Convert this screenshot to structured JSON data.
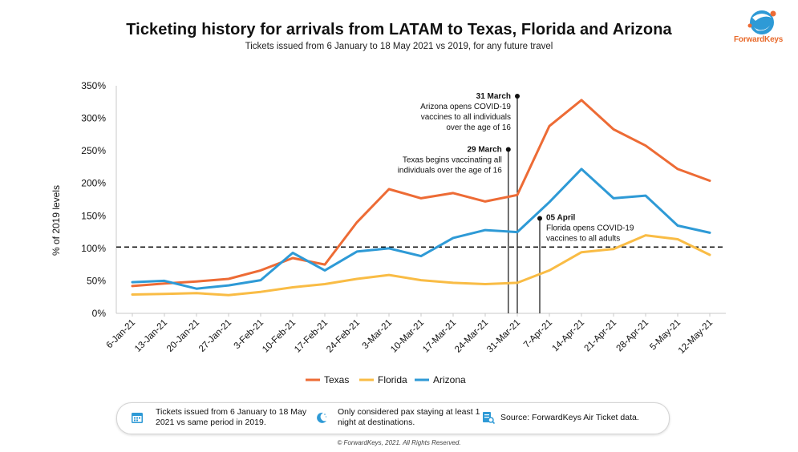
{
  "header": {
    "title": "Ticketing history for arrivals from LATAM to Texas, Florida and Arizona",
    "subtitle": "Tickets issued from 6 January to 18 May 2021 vs 2019, for any future travel",
    "logo_text": "ForwardKeys"
  },
  "chart_data": {
    "type": "line",
    "ylabel": "% of 2019 levels",
    "ylim": [
      0,
      350
    ],
    "y_ticks": [
      "0%",
      "50%",
      "100%",
      "150%",
      "200%",
      "250%",
      "300%",
      "350%"
    ],
    "categories": [
      "6-Jan-21",
      "13-Jan-21",
      "20-Jan-21",
      "27-Jan-21",
      "3-Feb-21",
      "10-Feb-21",
      "17-Feb-21",
      "24-Feb-21",
      "3-Mar-21",
      "10-Mar-21",
      "17-Mar-21",
      "24-Mar-21",
      "31-Mar-21",
      "7-Apr-21",
      "14-Apr-21",
      "21-Apr-21",
      "28-Apr-21",
      "5-May-21",
      "12-May-21"
    ],
    "series": [
      {
        "name": "Texas",
        "color": "#ED6B35",
        "values": [
          42,
          46,
          49,
          53,
          66,
          85,
          75,
          140,
          191,
          177,
          185,
          172,
          182,
          288,
          328,
          283,
          258,
          222,
          204
        ]
      },
      {
        "name": "Florida",
        "color": "#F9BC45",
        "values": [
          29,
          30,
          31,
          28,
          33,
          40,
          45,
          53,
          59,
          51,
          47,
          45,
          47,
          66,
          94,
          99,
          120,
          114,
          90
        ]
      },
      {
        "name": "Arizona",
        "color": "#2E9AD6",
        "values": [
          48,
          50,
          38,
          43,
          51,
          93,
          66,
          95,
          100,
          88,
          116,
          128,
          125,
          171,
          222,
          177,
          181,
          135,
          124
        ]
      }
    ],
    "reference_line": {
      "value": 102,
      "style": "dashed"
    },
    "annotations": [
      {
        "date": "31 March",
        "lines": [
          "Arizona opens COVID-19",
          "vaccines to all individuals",
          "over the age of 16"
        ],
        "x_category_pos": 12.0,
        "top_value": 334
      },
      {
        "date": "29 March",
        "lines": [
          "Texas begins vaccinating all",
          "individuals over the age of 16"
        ],
        "x_category_pos": 11.72,
        "top_value": 252
      },
      {
        "date": "05 April",
        "lines": [
          "Florida opens COVID-19",
          "vaccines to all adults"
        ],
        "x_category_pos": 12.7,
        "top_value": 146
      }
    ],
    "legend_position": "bottom",
    "grid": false
  },
  "footer": {
    "notes": [
      {
        "icon": "calendar-icon",
        "text": "Tickets issued from 6 January to 18 May 2021 vs same period in 2019."
      },
      {
        "icon": "moon-icon",
        "text": "Only considered pax staying at least 1 night at destinations."
      },
      {
        "icon": "data-source-icon",
        "text": "Source: ForwardKeys Air Ticket data."
      }
    ],
    "copyright": "© ForwardKeys, 2021. All Rights Reserved."
  }
}
